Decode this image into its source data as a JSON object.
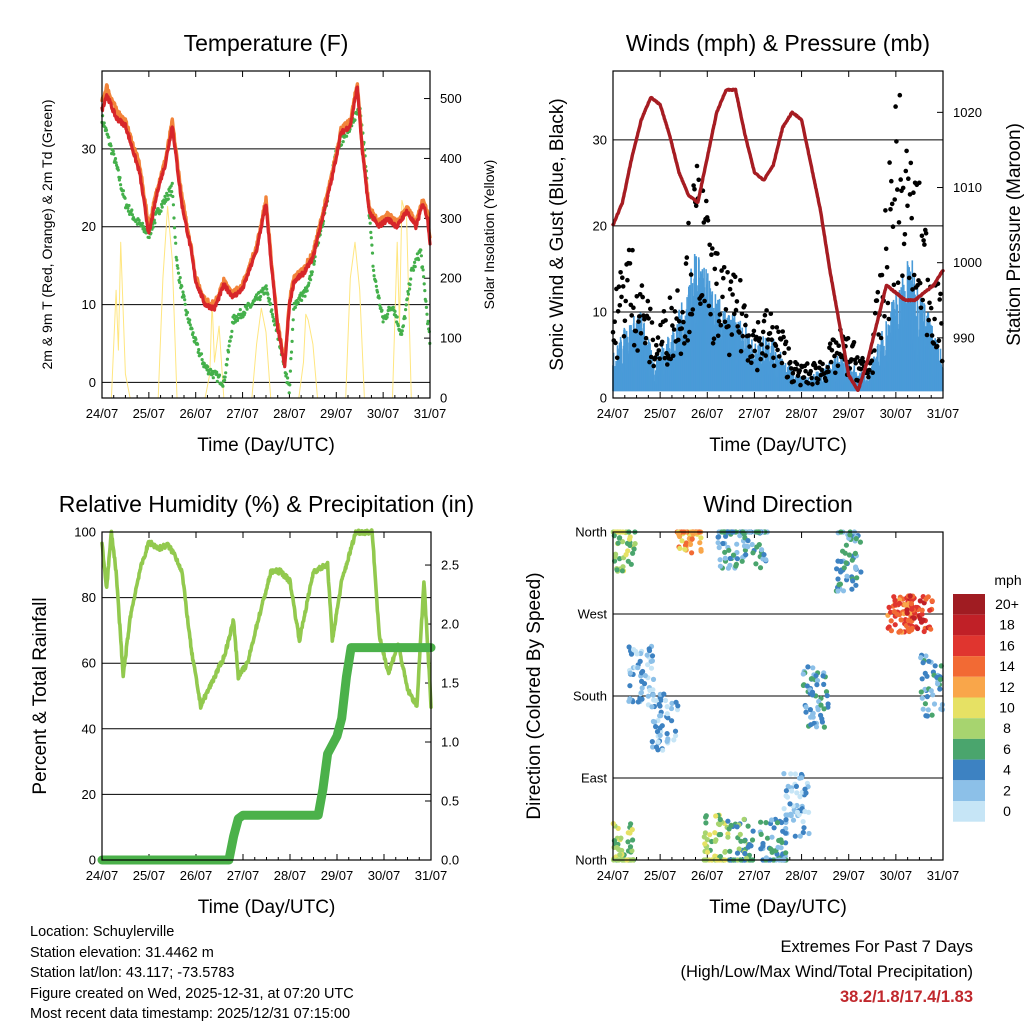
{
  "x_ticks": [
    "24/07",
    "25/07",
    "26/07",
    "27/07",
    "28/07",
    "29/07",
    "30/07",
    "31/07"
  ],
  "x_axis_label": "Time (Day/UTC)",
  "colors": {
    "red": "#d7262a",
    "orange": "#f2843a",
    "green": "#44b04b",
    "yellow": "#ffe680",
    "black": "#000000",
    "blue": "#4a9bd8",
    "maroon": "#a61c22",
    "rh": "#92c94e",
    "rain": "#4bb14a"
  },
  "chart_data": [
    {
      "type": "line",
      "title": "Temperature (F)",
      "ylabel": "2m & 9m T (Red, Orange) & 2m Td (Green)",
      "y2label": "Solar Insolation (Yellow)",
      "ylim": [
        -2,
        40
      ],
      "y2lim": [
        0,
        546
      ],
      "yticks": [
        0,
        10,
        20,
        30
      ],
      "y2ticks": [
        0,
        100,
        200,
        300,
        400,
        500
      ],
      "series": [
        {
          "name": "2m T",
          "axis": "left",
          "color": "red",
          "x": [
            0,
            0.1,
            0.3,
            0.5,
            0.8,
            1.0,
            1.2,
            1.35,
            1.5,
            1.7,
            1.9,
            2.0,
            2.2,
            2.4,
            2.6,
            2.8,
            3.0,
            3.3,
            3.5,
            3.6,
            3.75,
            3.9,
            4.0,
            4.1,
            4.3,
            4.5,
            4.7,
            4.9,
            5.1,
            5.3,
            5.45,
            5.55,
            5.7,
            5.9,
            6.1,
            6.3,
            6.5,
            6.7,
            6.85,
            6.95,
            7.0
          ],
          "values": [
            35,
            37,
            34,
            33,
            27,
            19,
            25,
            28,
            33,
            23,
            17,
            13,
            10,
            9.5,
            12.5,
            11,
            12,
            17,
            23,
            16,
            7,
            2,
            10,
            13,
            14,
            16,
            21,
            26,
            32,
            33,
            38,
            30,
            22,
            20,
            21,
            20,
            22,
            20,
            23,
            21,
            18
          ]
        },
        {
          "name": "9m T",
          "axis": "left",
          "color": "orange",
          "x": [
            0,
            0.1,
            0.3,
            0.5,
            0.8,
            1.0,
            1.2,
            1.35,
            1.5,
            1.7,
            1.9,
            2.0,
            2.2,
            2.4,
            2.6,
            2.8,
            3.0,
            3.3,
            3.5,
            3.6,
            3.75,
            3.9,
            4.0,
            4.1,
            4.3,
            4.5,
            4.7,
            4.9,
            5.1,
            5.3,
            5.45,
            5.55,
            5.7,
            5.9,
            6.1,
            6.3,
            6.5,
            6.7,
            6.85,
            6.95,
            7.0
          ],
          "values": [
            36,
            38,
            35,
            33.5,
            28,
            20,
            25.5,
            28.5,
            33.5,
            24,
            17.5,
            13.5,
            10.5,
            10,
            13,
            11.5,
            12.5,
            17.5,
            23.5,
            16.5,
            7.5,
            2.5,
            10.5,
            13.5,
            14.5,
            16.5,
            21.5,
            26.5,
            32.5,
            33.5,
            38.5,
            30.5,
            22.5,
            20.5,
            21.5,
            20.5,
            22.5,
            20.5,
            23.5,
            21.5,
            18.5
          ]
        },
        {
          "name": "2m Td",
          "axis": "left",
          "color": "green",
          "x": [
            0,
            0.1,
            0.3,
            0.5,
            0.7,
            1.0,
            1.2,
            1.5,
            1.6,
            1.8,
            2.0,
            2.2,
            2.4,
            2.6,
            2.8,
            3.0,
            3.2,
            3.5,
            3.8,
            4.0,
            4.1,
            4.4,
            4.6,
            4.8,
            5.0,
            5.2,
            5.5,
            5.6,
            5.8,
            6.0,
            6.2,
            6.4,
            6.6,
            6.8,
            7.0
          ],
          "values": [
            34,
            32,
            28,
            23,
            21,
            19,
            22,
            25,
            15,
            9,
            5,
            2,
            1,
            0,
            8,
            9,
            10,
            12,
            5,
            -1,
            10,
            12,
            18,
            23,
            30,
            32,
            35,
            30,
            14,
            8,
            10,
            6,
            14,
            17,
            5
          ]
        },
        {
          "name": "Solar Insolation",
          "axis": "right",
          "color": "yellow",
          "x": [
            0,
            0.2,
            0.3,
            0.35,
            0.4,
            0.5,
            0.6,
            1.2,
            1.3,
            1.4,
            1.5,
            1.6,
            2.2,
            2.3,
            2.35,
            2.4,
            2.5,
            2.6,
            3.2,
            3.3,
            3.4,
            3.5,
            3.6,
            4.2,
            4.3,
            4.35,
            4.4,
            4.5,
            4.6,
            5.2,
            5.3,
            5.4,
            5.5,
            5.6,
            6.2,
            6.3,
            6.35,
            6.4,
            6.5,
            6.6,
            7.0
          ],
          "values": [
            0,
            0,
            180,
            80,
            260,
            40,
            0,
            0,
            200,
            320,
            230,
            0,
            0,
            40,
            160,
            60,
            120,
            0,
            0,
            90,
            150,
            110,
            0,
            0,
            60,
            140,
            130,
            90,
            0,
            0,
            200,
            260,
            180,
            0,
            0,
            260,
            120,
            330,
            300,
            0,
            0
          ]
        }
      ]
    },
    {
      "type": "scatter+line",
      "title": "Winds (mph) & Pressure (mb)",
      "ylabel": "Sonic Wind & Gust (Blue, Black)",
      "y2label": "Station Pressure (Maroon)",
      "ylim": [
        0,
        38
      ],
      "y2lim": [
        982,
        1025.5
      ],
      "yticks": [
        0,
        10,
        20,
        30
      ],
      "y2ticks": [
        990,
        1000,
        1010,
        1020
      ],
      "series": [
        {
          "name": "Sonic Wind",
          "color": "blue",
          "x": [
            0,
            0.3,
            0.6,
            0.9,
            1.0,
            1.2,
            1.5,
            1.8,
            2.1,
            2.4,
            2.8,
            3.0,
            3.3,
            3.6,
            3.9,
            4.2,
            4.5,
            4.8,
            5.1,
            5.4,
            5.7,
            6.0,
            6.3,
            6.6,
            6.9,
            7.0
          ],
          "values": [
            4,
            7,
            8,
            3,
            5,
            6,
            9,
            14,
            10,
            8,
            7,
            5,
            6,
            4,
            2,
            2,
            3,
            4,
            3,
            2,
            6,
            10,
            13,
            9,
            5,
            4
          ]
        },
        {
          "name": "Gust",
          "color": "black",
          "x": [
            0,
            0.3,
            0.6,
            0.9,
            1.0,
            1.2,
            1.5,
            1.8,
            2.1,
            2.4,
            2.8,
            3.0,
            3.3,
            3.6,
            3.9,
            4.2,
            4.5,
            4.8,
            5.1,
            5.4,
            5.7,
            6.0,
            6.3,
            6.6,
            6.9,
            7.0
          ],
          "values": [
            8,
            15,
            11,
            6,
            7,
            9,
            12,
            22,
            14,
            11,
            10,
            7,
            8,
            6,
            3,
            3,
            4,
            6,
            5,
            3,
            12,
            28,
            22,
            17,
            10,
            8
          ]
        },
        {
          "name": "Station Pressure",
          "color": "maroon",
          "axis": "right",
          "x": [
            0,
            0.2,
            0.4,
            0.6,
            0.8,
            1.0,
            1.2,
            1.4,
            1.6,
            1.8,
            2.0,
            2.2,
            2.4,
            2.6,
            2.8,
            3.0,
            3.2,
            3.4,
            3.6,
            3.8,
            4.0,
            4.2,
            4.4,
            4.6,
            4.8,
            5.0,
            5.2,
            5.4,
            5.6,
            5.8,
            6.0,
            6.2,
            6.4,
            6.6,
            6.8,
            7.0
          ],
          "values": [
            1005,
            1008,
            1014,
            1019,
            1022,
            1021,
            1017,
            1012,
            1009,
            1008,
            1014,
            1020,
            1023,
            1023,
            1017,
            1012,
            1011,
            1013,
            1018,
            1020,
            1019,
            1013,
            1007,
            999,
            992,
            985,
            983,
            987,
            992,
            997,
            996,
            995,
            995,
            996,
            997,
            999
          ]
        }
      ]
    },
    {
      "type": "line",
      "title": "Relative Humidity (%) & Precipitation (in)",
      "ylabel": "Percent & Total Rainfall",
      "ylim": [
        0,
        100
      ],
      "y2lim": [
        0,
        2.78
      ],
      "yticks": [
        0,
        20,
        40,
        60,
        80,
        100
      ],
      "y2ticks": [
        0.0,
        0.5,
        1.0,
        1.5,
        2.0,
        2.5
      ],
      "series": [
        {
          "name": "Relative Humidity",
          "color": "rh",
          "axis": "left",
          "x": [
            0,
            0.1,
            0.2,
            0.3,
            0.45,
            0.6,
            0.8,
            1.0,
            1.2,
            1.4,
            1.55,
            1.7,
            1.9,
            2.1,
            2.3,
            2.6,
            2.8,
            2.9,
            3.1,
            3.3,
            3.6,
            3.8,
            4.0,
            4.2,
            4.5,
            4.8,
            4.9,
            5.1,
            5.4,
            5.6,
            5.75,
            5.9,
            6.1,
            6.3,
            6.5,
            6.7,
            6.85,
            6.95,
            7.0
          ],
          "values": [
            96,
            83,
            100,
            88,
            56,
            74,
            88,
            97,
            95,
            96,
            93,
            88,
            64,
            47,
            53,
            62,
            73,
            56,
            60,
            72,
            88,
            88,
            85,
            67,
            88,
            90,
            67,
            85,
            100,
            100,
            100,
            68,
            57,
            66,
            52,
            47,
            85,
            60,
            47
          ]
        },
        {
          "name": "Total Precipitation",
          "color": "rain",
          "axis": "right",
          "x": [
            0,
            2.7,
            2.8,
            2.9,
            3.0,
            4.0,
            4.6,
            4.7,
            4.8,
            5.0,
            5.1,
            5.2,
            5.3,
            5.5,
            6.0,
            7.0
          ],
          "values": [
            0,
            0,
            0.2,
            0.35,
            0.38,
            0.38,
            0.38,
            0.6,
            0.9,
            1.05,
            1.2,
            1.55,
            1.8,
            1.8,
            1.8,
            1.8
          ]
        }
      ]
    },
    {
      "type": "scatter",
      "title": "Wind Direction",
      "ylabel": "Direction (Colored By Speed)",
      "yticks": [
        "North",
        "East",
        "South",
        "West",
        "North"
      ],
      "ylim": [
        0,
        360
      ],
      "color_legend_title": "mph",
      "color_legend": [
        "20+",
        "18",
        "16",
        "14",
        "12",
        "10",
        "8",
        "6",
        "4",
        "2",
        "0"
      ],
      "color_legend_colors": [
        "#a01c22",
        "#c02027",
        "#e0352f",
        "#f26a34",
        "#f9a64a",
        "#e6e164",
        "#a7d46f",
        "#4aa56d",
        "#3d82c2",
        "#8cc0e8",
        "#c6e5f6"
      ],
      "clusters": [
        {
          "x": 0.2,
          "dir": 350,
          "speed": 8
        },
        {
          "x": 0.6,
          "dir": 200,
          "speed": 2
        },
        {
          "x": 1.6,
          "dir": 355,
          "speed": 12
        },
        {
          "x": 2.5,
          "dir": 355,
          "speed": 4
        },
        {
          "x": 3.0,
          "dir": 355,
          "speed": 4
        },
        {
          "x": 1.1,
          "dir": 150,
          "speed": 2
        },
        {
          "x": 3.9,
          "dir": 60,
          "speed": 2
        },
        {
          "x": 4.3,
          "dir": 180,
          "speed": 4
        },
        {
          "x": 5.0,
          "dir": 330,
          "speed": 4
        },
        {
          "x": 6.1,
          "dir": 270,
          "speed": 14
        },
        {
          "x": 6.5,
          "dir": 270,
          "speed": 16
        },
        {
          "x": 6.8,
          "dir": 190,
          "speed": 4
        },
        {
          "x": 0.2,
          "dir": 10,
          "speed": 8
        },
        {
          "x": 2.2,
          "dir": 15,
          "speed": 8
        },
        {
          "x": 2.7,
          "dir": 10,
          "speed": 6
        },
        {
          "x": 3.4,
          "dir": 10,
          "speed": 4
        }
      ]
    }
  ],
  "station": {
    "location": "Location: Schuylerville",
    "elevation": "Station elevation: 31.4462 m",
    "latlon": "Station lat/lon: 43.117; -73.5783",
    "created": "Figure created on Wed, 2025-12-31, at 07:20 UTC",
    "timestamp": "Most recent data timestamp: 2025/12/31 07:15:00"
  },
  "extremes": {
    "title": "Extremes For Past 7 Days",
    "subtitle": "(High/Low/Max Wind/Total Precipitation)",
    "values": "38.2/1.8/17.4/1.83"
  }
}
